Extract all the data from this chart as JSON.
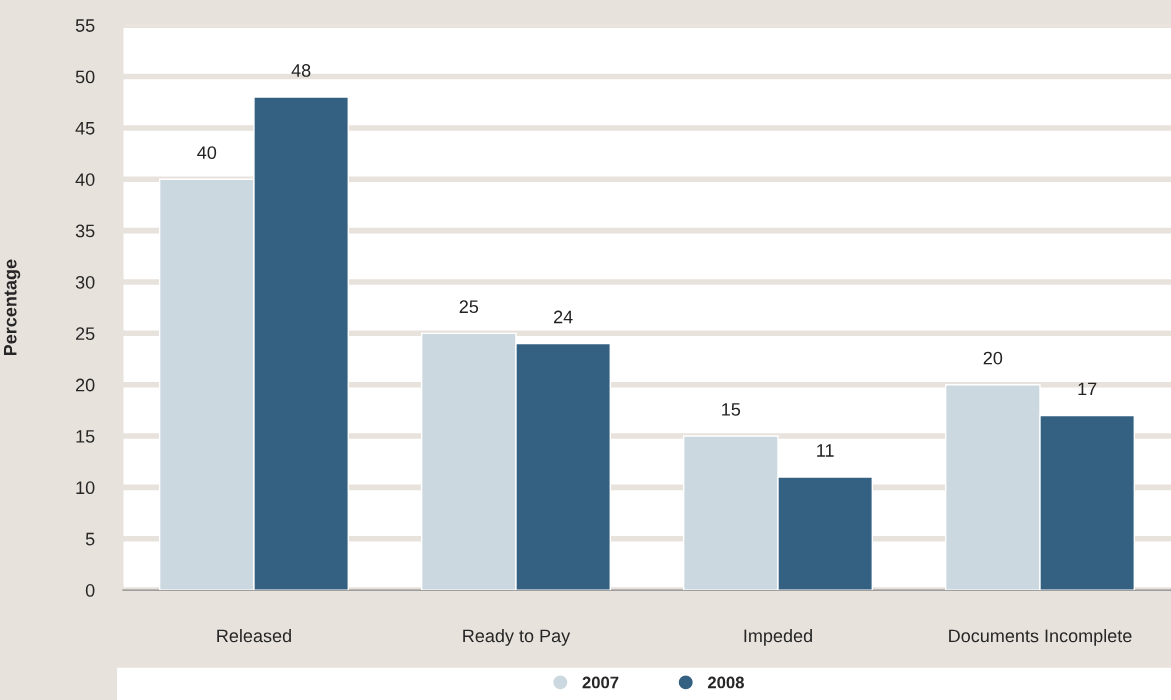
{
  "chart_data": {
    "type": "bar",
    "ylabel": "Percentage",
    "categories": [
      "Released",
      "Ready to Pay",
      "Impeded",
      "Documents Incomplete"
    ],
    "series": [
      {
        "name": "2007",
        "color": "#cbd8e0",
        "values": [
          40,
          25,
          15,
          20
        ]
      },
      {
        "name": "2008",
        "color": "#346182",
        "values": [
          48,
          24,
          11,
          17
        ]
      }
    ],
    "ylim": [
      0,
      55
    ],
    "yticks": [
      0,
      5,
      10,
      15,
      20,
      25,
      30,
      35,
      40,
      45,
      50,
      55
    ],
    "grid": "y",
    "legend": "bottom",
    "data_labels": true,
    "marker": "circle"
  }
}
